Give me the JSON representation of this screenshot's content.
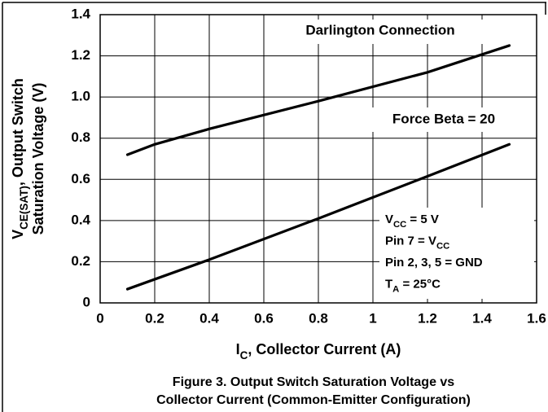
{
  "chart_data": {
    "type": "line",
    "x_label": [
      {
        "text": "I"
      },
      {
        "text": "C",
        "sub": true
      },
      {
        "text": ", Collector Current (A)"
      }
    ],
    "y_label": [
      [
        {
          "text": "V"
        },
        {
          "text": "CE(SAT)",
          "sub": true
        },
        {
          "text": ", Output Switch"
        }
      ],
      [
        {
          "text": "Saturation Voltage (V)"
        }
      ]
    ],
    "caption": [
      "Figure 3. Output Switch Saturation Voltage vs",
      "Collector Current (Common-Emitter Configuration)"
    ],
    "xlim": [
      0,
      1.6
    ],
    "xticks": [
      0,
      0.2,
      0.4,
      0.6,
      0.8,
      1,
      1.2,
      1.4,
      1.6
    ],
    "ylim": [
      0,
      1.4
    ],
    "yticks": [
      0,
      0.2,
      0.4,
      0.6,
      0.8,
      {
        "value": 1,
        "label": "1.0"
      },
      1.2,
      1.4
    ],
    "grid": true,
    "series": [
      {
        "name": "Darlington Connection",
        "color": "#000000",
        "x": [
          0.1,
          0.2,
          0.4,
          0.8,
          1.2,
          1.5
        ],
        "values": [
          0.72,
          0.77,
          0.845,
          0.98,
          1.12,
          1.25
        ]
      },
      {
        "name": "Force Beta = 20",
        "color": "#000000",
        "x": [
          0.1,
          0.4,
          0.8,
          1.2,
          1.5
        ],
        "values": [
          0.067,
          0.21,
          0.41,
          0.615,
          0.77
        ]
      }
    ],
    "conditions": [
      [
        {
          "text": "V"
        },
        {
          "text": "CC",
          "sub": true
        },
        {
          "text": " = 5 V"
        }
      ],
      [
        {
          "text": "Pin 7 = V"
        },
        {
          "text": "CC",
          "sub": true
        }
      ],
      [
        {
          "text": "Pin 2, 3, 5 = GND"
        }
      ],
      [
        {
          "text": "T"
        },
        {
          "text": "A",
          "sub": true
        },
        {
          "text": " = 25°C"
        }
      ]
    ]
  }
}
